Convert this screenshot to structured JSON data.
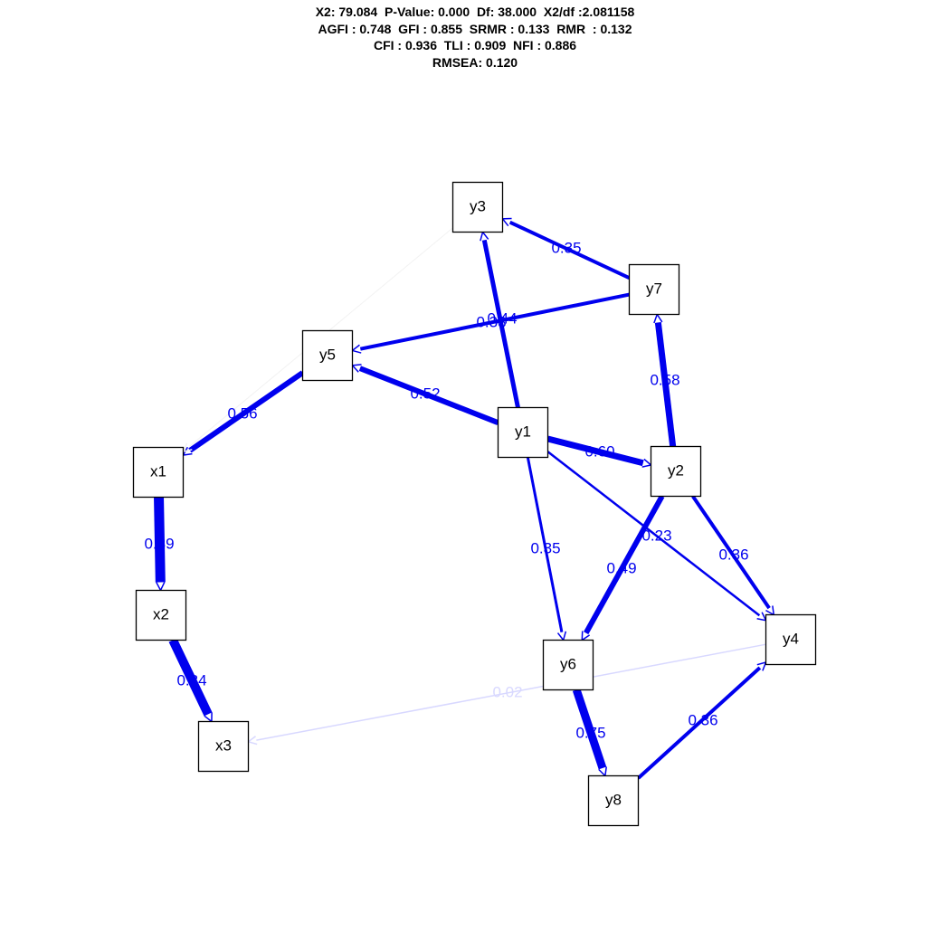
{
  "header": {
    "line1": "X2: 79.084  P-Value: 0.000  Df: 38.000  X2/df :2.081158",
    "line2": "AGFI : 0.748  GFI : 0.855  SRMR : 0.133  RMR  : 0.132",
    "line3": "CFI : 0.936  TLI : 0.909  NFI : 0.886",
    "line4": "RMSEA: 0.120"
  },
  "colors": {
    "edge": "#0000ee",
    "edge_faint": "#d8d8ff",
    "edge_faintest": "#f2f2f2",
    "node_border": "#000000"
  },
  "nodes": [
    {
      "id": "y3",
      "label": "y3"
    },
    {
      "id": "y7",
      "label": "y7"
    },
    {
      "id": "y5",
      "label": "y5"
    },
    {
      "id": "y1",
      "label": "y1"
    },
    {
      "id": "y2",
      "label": "y2"
    },
    {
      "id": "x1",
      "label": "x1"
    },
    {
      "id": "x2",
      "label": "x2"
    },
    {
      "id": "x3",
      "label": "x3"
    },
    {
      "id": "y4",
      "label": "y4"
    },
    {
      "id": "y6",
      "label": "y6"
    },
    {
      "id": "y8",
      "label": "y8"
    }
  ],
  "edges": [
    {
      "from": "y7",
      "to": "y3",
      "label": "0.35",
      "strength": "strong"
    },
    {
      "from": "y7",
      "to": "y5",
      "label": "0.33",
      "strength": "strong"
    },
    {
      "from": "y1",
      "to": "y3",
      "label": "0.44",
      "strength": "strong"
    },
    {
      "from": "y1",
      "to": "y5",
      "label": "0.52",
      "strength": "strong"
    },
    {
      "from": "y5",
      "to": "x1",
      "label": "0.56",
      "strength": "strong"
    },
    {
      "from": "y2",
      "to": "y7",
      "label": "0.58",
      "strength": "strong"
    },
    {
      "from": "y1",
      "to": "y2",
      "label": "0.60",
      "strength": "strong"
    },
    {
      "from": "x1",
      "to": "x2",
      "label": "0.89",
      "strength": "strong"
    },
    {
      "from": "x2",
      "to": "x3",
      "label": "0.84",
      "strength": "strong"
    },
    {
      "from": "y1",
      "to": "y6",
      "label": "0.35",
      "strength": "strong"
    },
    {
      "from": "y1",
      "to": "y4",
      "label": "0.23",
      "strength": "strong"
    },
    {
      "from": "y2",
      "to": "y6",
      "label": "0.49",
      "strength": "strong"
    },
    {
      "from": "y2",
      "to": "y4",
      "label": "0.36",
      "strength": "strong"
    },
    {
      "from": "y6",
      "to": "y8",
      "label": "0.75",
      "strength": "strong"
    },
    {
      "from": "y8",
      "to": "y4",
      "label": "0.36",
      "strength": "strong"
    },
    {
      "from": "y4",
      "to": "x3",
      "label": "0.02",
      "strength": "faint"
    },
    {
      "from": "y3",
      "to": "x1",
      "label": "",
      "strength": "faintest"
    }
  ]
}
